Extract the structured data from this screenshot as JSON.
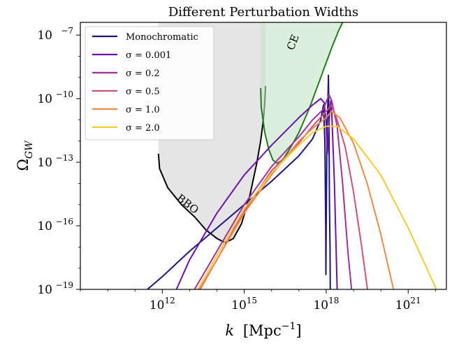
{
  "chart_data": {
    "type": "line",
    "title": "Different Perturbation Widths",
    "xlabel_main": "k",
    "xlabel_unit_pre": "[Mpc",
    "xlabel_unit_exp": "−1",
    "xlabel_unit_post": "]",
    "ylabel_main": "Ω",
    "ylabel_sub": "GW",
    "x_scale": "log",
    "y_scale": "log",
    "xlim_exp": [
      9,
      22.4
    ],
    "ylim_exp": [
      -19,
      -6.4
    ],
    "x_ticks": [
      {
        "exp": 12,
        "base": "10",
        "sup": "12"
      },
      {
        "exp": 15,
        "base": "10",
        "sup": "15"
      },
      {
        "exp": 18,
        "base": "10",
        "sup": "18"
      },
      {
        "exp": 21,
        "base": "10",
        "sup": "21"
      }
    ],
    "y_ticks": [
      {
        "exp": -7,
        "base": "10",
        "sup": "−7"
      },
      {
        "exp": -10,
        "base": "10",
        "sup": "−10"
      },
      {
        "exp": -13,
        "base": "10",
        "sup": "−13"
      },
      {
        "exp": -16,
        "base": "10",
        "sup": "−16"
      },
      {
        "exp": -19,
        "base": "10",
        "sup": "−19"
      }
    ],
    "legend_position": "top-left",
    "regions": [
      {
        "label": "BBO",
        "fill": "#d3d3d3",
        "boundary_color": "#000000",
        "label_at": [
          12.85,
          -15.1
        ],
        "label_rotation": 38,
        "points": [
          [
            11.86,
            -12.6
          ],
          [
            11.9,
            -13.3
          ],
          [
            12.2,
            -14.2
          ],
          [
            12.7,
            -15.0
          ],
          [
            13.2,
            -15.6
          ],
          [
            13.6,
            -16.2
          ],
          [
            14.0,
            -16.6
          ],
          [
            14.3,
            -16.8
          ],
          [
            14.6,
            -16.6
          ],
          [
            14.9,
            -15.9
          ],
          [
            15.2,
            -14.6
          ],
          [
            15.45,
            -13.1
          ],
          [
            15.6,
            -12.0
          ],
          [
            15.7,
            -11.0
          ],
          [
            15.75,
            -10.2
          ],
          [
            15.78,
            -9.4
          ]
        ]
      },
      {
        "label": "CE",
        "fill": "#c5e3c5",
        "boundary_color": "#1e7e1e",
        "label_at": [
          16.9,
          -7.4
        ],
        "label_rotation": -68,
        "points": [
          [
            15.6,
            -9.5
          ],
          [
            15.62,
            -10.4
          ],
          [
            15.75,
            -11.6
          ],
          [
            15.9,
            -12.4
          ],
          [
            16.05,
            -12.9
          ],
          [
            16.2,
            -13.05
          ],
          [
            16.4,
            -12.9
          ],
          [
            16.7,
            -12.3
          ],
          [
            17.0,
            -11.6
          ],
          [
            17.2,
            -11.0
          ],
          [
            17.4,
            -10.4
          ],
          [
            17.6,
            -9.7
          ],
          [
            17.8,
            -9.0
          ],
          [
            18.0,
            -8.3
          ],
          [
            18.2,
            -7.6
          ],
          [
            18.45,
            -6.8
          ],
          [
            18.6,
            -6.4
          ]
        ]
      }
    ],
    "series": [
      {
        "name": "Monochromatic",
        "color": "#1a1580",
        "points": [
          [
            9.0,
            -21.0
          ],
          [
            10.0,
            -20.3
          ],
          [
            11.0,
            -19.5
          ],
          [
            12.0,
            -18.4
          ],
          [
            13.0,
            -17.2
          ],
          [
            14.0,
            -16.1
          ],
          [
            15.0,
            -15.0
          ],
          [
            16.0,
            -13.9
          ],
          [
            17.0,
            -12.7
          ],
          [
            17.5,
            -11.9
          ],
          [
            17.8,
            -11.0
          ],
          [
            17.9,
            -10.3
          ],
          [
            17.95,
            -12.0
          ],
          [
            17.98,
            -16.0
          ],
          [
            17.99,
            -18.3
          ],
          [
            18.0,
            -16.0
          ],
          [
            18.03,
            -11.5
          ],
          [
            18.06,
            -10.2
          ],
          [
            18.08,
            -8.9
          ],
          [
            18.1,
            -11.0
          ],
          [
            18.12,
            -15.0
          ],
          [
            18.14,
            -17.0
          ],
          [
            18.15,
            -19.5
          ]
        ]
      },
      {
        "name": "σ = 0.001",
        "color": "#6a10b0",
        "points": [
          [
            12.0,
            -20.5
          ],
          [
            13.0,
            -17.6
          ],
          [
            14.0,
            -15.4
          ],
          [
            15.0,
            -13.6
          ],
          [
            16.0,
            -12.2
          ],
          [
            17.0,
            -10.9
          ],
          [
            17.5,
            -10.3
          ],
          [
            17.8,
            -10.0
          ],
          [
            17.93,
            -10.2
          ],
          [
            18.0,
            -11.2
          ],
          [
            18.04,
            -12.6
          ],
          [
            18.07,
            -12.0
          ],
          [
            18.12,
            -10.8
          ],
          [
            18.17,
            -10.1
          ],
          [
            18.2,
            -10.6
          ],
          [
            18.3,
            -14.0
          ],
          [
            18.4,
            -19.0
          ],
          [
            18.45,
            -21.0
          ]
        ]
      },
      {
        "name": "σ = 0.2",
        "color": "#a4309a",
        "points": [
          [
            12.0,
            -21.0
          ],
          [
            13.0,
            -19.4
          ],
          [
            14.0,
            -17.2
          ],
          [
            15.0,
            -15.0
          ],
          [
            16.0,
            -13.2
          ],
          [
            17.0,
            -11.8
          ],
          [
            17.5,
            -11.0
          ],
          [
            17.9,
            -10.5
          ],
          [
            18.1,
            -9.8
          ],
          [
            18.2,
            -10.1
          ],
          [
            18.4,
            -11.3
          ],
          [
            18.6,
            -14.0
          ],
          [
            18.8,
            -17.3
          ],
          [
            18.95,
            -19.3
          ],
          [
            19.0,
            -21.0
          ]
        ]
      },
      {
        "name": "σ = 0.5",
        "color": "#d34f74",
        "points": [
          [
            12.0,
            -21.5
          ],
          [
            13.0,
            -19.8
          ],
          [
            14.0,
            -17.6
          ],
          [
            15.0,
            -15.3
          ],
          [
            16.0,
            -13.4
          ],
          [
            17.0,
            -12.1
          ],
          [
            17.5,
            -11.3
          ],
          [
            18.0,
            -10.6
          ],
          [
            18.2,
            -10.3
          ],
          [
            18.4,
            -11.0
          ],
          [
            18.7,
            -12.3
          ],
          [
            19.0,
            -14.4
          ],
          [
            19.3,
            -17.0
          ],
          [
            19.55,
            -19.4
          ],
          [
            19.6,
            -21.0
          ]
        ]
      },
      {
        "name": "σ = 1.0",
        "color": "#ef8b46",
        "points": [
          [
            12.0,
            -21.8
          ],
          [
            13.0,
            -19.9
          ],
          [
            14.0,
            -17.6
          ],
          [
            15.0,
            -15.4
          ],
          [
            16.0,
            -13.6
          ],
          [
            17.0,
            -12.0
          ],
          [
            17.5,
            -11.4
          ],
          [
            18.0,
            -10.9
          ],
          [
            18.2,
            -10.6
          ],
          [
            18.5,
            -10.9
          ],
          [
            19.0,
            -12.1
          ],
          [
            19.5,
            -14.0
          ],
          [
            20.0,
            -16.4
          ],
          [
            20.5,
            -19.2
          ],
          [
            20.6,
            -21.0
          ]
        ]
      },
      {
        "name": "σ = 2.0",
        "color": "#f5cc2c",
        "points": [
          [
            12.0,
            -21.9
          ],
          [
            13.0,
            -19.7
          ],
          [
            14.0,
            -17.4
          ],
          [
            15.0,
            -15.2
          ],
          [
            16.0,
            -13.5
          ],
          [
            17.0,
            -12.2
          ],
          [
            17.5,
            -11.6
          ],
          [
            18.0,
            -11.3
          ],
          [
            18.4,
            -11.3
          ],
          [
            19.0,
            -11.9
          ],
          [
            20.0,
            -13.6
          ],
          [
            21.0,
            -16.1
          ],
          [
            22.0,
            -18.9
          ],
          [
            22.1,
            -21.0
          ]
        ]
      }
    ]
  }
}
